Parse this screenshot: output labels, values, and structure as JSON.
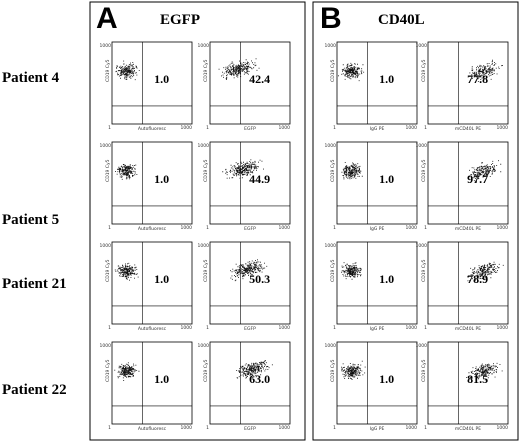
{
  "panels": [
    {
      "letter": "A",
      "title": "EGFP",
      "x_labels": [
        "Autofluoresc",
        "EGFP"
      ]
    },
    {
      "letter": "B",
      "title": "CD40L",
      "x_labels": [
        "IgG PE",
        "mCD40L PE"
      ]
    }
  ],
  "y_label": "CD19 Cy5",
  "axis_min": "1",
  "axis_max": "1000",
  "rows": [
    {
      "patient": "Patient 4",
      "values": [
        "1.0",
        "42.4",
        "1.0",
        "77.8"
      ]
    },
    {
      "patient": "Patient 5",
      "values": [
        "1.0",
        "44.9",
        "1.0",
        "97.7"
      ]
    },
    {
      "patient": "Patient 21",
      "values": [
        "1.0",
        "50.3",
        "1.0",
        "78.9"
      ]
    },
    {
      "patient": "Patient 22",
      "values": [
        "1.0",
        "63.0",
        "1.0",
        "81.5"
      ]
    }
  ]
}
